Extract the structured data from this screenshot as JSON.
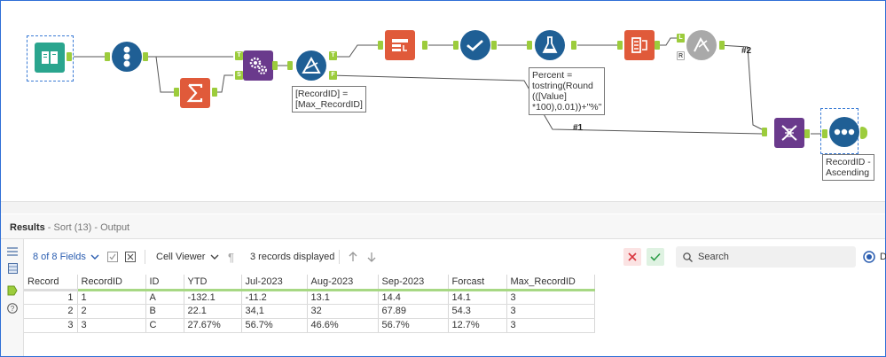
{
  "canvas": {
    "annotations": {
      "filter": "[RecordID] =\n[Max_RecordID]",
      "formula": "Percent =\ntostring(Round\n(([Value]\n*100),0.01))+\"%\"",
      "sort": "RecordID -\nAscending"
    },
    "wire_labels": [
      "#2",
      "#1"
    ],
    "anchor_labels": {
      "join_t": "T",
      "join_s": "S",
      "filter_t": "T",
      "filter_f": "F",
      "union_l": "L",
      "union_r": "R"
    }
  },
  "results": {
    "title": "Results",
    "subtitle": " - Sort (13) - Output",
    "fields_label": "8 of 8 Fields",
    "viewer_label": "Cell Viewer",
    "records_label": "3 records displayed",
    "search_placeholder": "Search",
    "radio_label": "D",
    "columns": [
      "Record",
      "RecordID",
      "ID",
      "YTD",
      "Jul-2023",
      "Aug-2023",
      "Sep-2023",
      "Forcast",
      "Max_RecordID"
    ],
    "rows": [
      [
        "1",
        "1",
        "A",
        "-132.1",
        "-11.2",
        "13.1",
        "14.4",
        "14.1",
        "3"
      ],
      [
        "2",
        "2",
        "B",
        "22.1",
        "34,1",
        "32",
        "67.89",
        "54.3",
        "3"
      ],
      [
        "3",
        "3",
        "C",
        "27.67%",
        "56.7%",
        "46.6%",
        "56.7%",
        "12.7%",
        "3"
      ]
    ]
  },
  "colors": {
    "input_tool": "#2aa58e",
    "prep_tool": "#1f5f95",
    "transform_tool": "#e05a3a",
    "join_tool": "#6a3a8c",
    "anchor": "#9ccc3c",
    "accent": "#2a5db0"
  }
}
